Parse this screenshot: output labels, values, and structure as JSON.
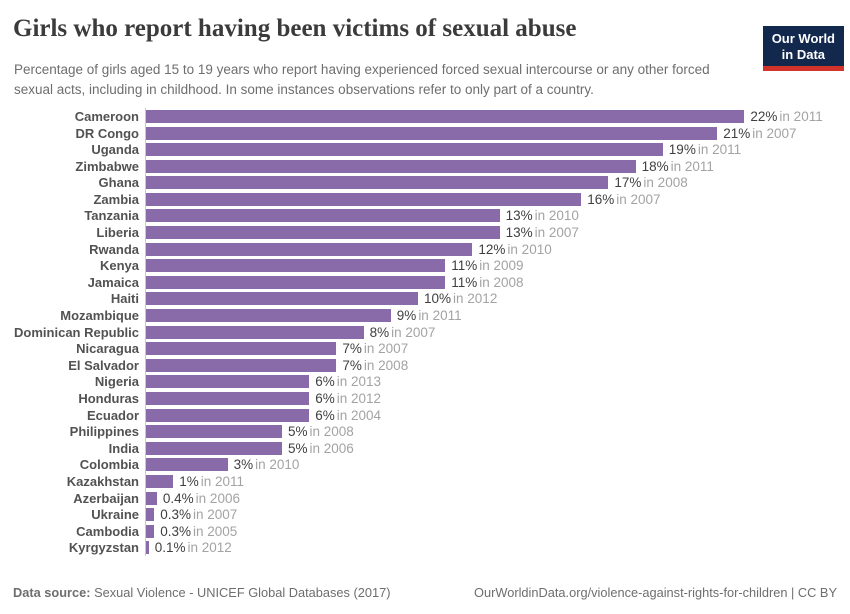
{
  "header": {
    "title": "Girls who report having been victims of sexual abuse",
    "subtitle": "Percentage of girls aged 15 to 19 years who report having experienced forced sexual intercourse or any other forced sexual acts, including in childhood. In some instances observations refer to only part of a country.",
    "logo": {
      "line1": "Our World",
      "line2": "in Data"
    }
  },
  "colors": {
    "bar": "#8a6baa",
    "logo_navy": "#12294d",
    "logo_red": "#d2342b",
    "axis_line": "#c9c9c9"
  },
  "chart_data": {
    "type": "bar",
    "orientation": "horizontal",
    "title": "Girls who report having been victims of sexual abuse",
    "unit": "%",
    "xlim": [
      0,
      22
    ],
    "grid": false,
    "legend": "none",
    "rows": [
      {
        "country": "Cameroon",
        "value": 22,
        "value_label": "22%",
        "year_label": "in 2011"
      },
      {
        "country": "DR Congo",
        "value": 21,
        "value_label": "21%",
        "year_label": "in 2007"
      },
      {
        "country": "Uganda",
        "value": 19,
        "value_label": "19%",
        "year_label": "in 2011"
      },
      {
        "country": "Zimbabwe",
        "value": 18,
        "value_label": "18%",
        "year_label": "in 2011"
      },
      {
        "country": "Ghana",
        "value": 17,
        "value_label": "17%",
        "year_label": "in 2008"
      },
      {
        "country": "Zambia",
        "value": 16,
        "value_label": "16%",
        "year_label": "in 2007"
      },
      {
        "country": "Tanzania",
        "value": 13,
        "value_label": "13%",
        "year_label": "in 2010"
      },
      {
        "country": "Liberia",
        "value": 13,
        "value_label": "13%",
        "year_label": "in 2007"
      },
      {
        "country": "Rwanda",
        "value": 12,
        "value_label": "12%",
        "year_label": "in 2010"
      },
      {
        "country": "Kenya",
        "value": 11,
        "value_label": "11%",
        "year_label": "in 2009"
      },
      {
        "country": "Jamaica",
        "value": 11,
        "value_label": "11%",
        "year_label": "in 2008"
      },
      {
        "country": "Haiti",
        "value": 10,
        "value_label": "10%",
        "year_label": "in 2012"
      },
      {
        "country": "Mozambique",
        "value": 9,
        "value_label": "9%",
        "year_label": "in 2011"
      },
      {
        "country": "Dominican Republic",
        "value": 8,
        "value_label": "8%",
        "year_label": "in 2007"
      },
      {
        "country": "Nicaragua",
        "value": 7,
        "value_label": "7%",
        "year_label": "in 2007"
      },
      {
        "country": "El Salvador",
        "value": 7,
        "value_label": "7%",
        "year_label": "in 2008"
      },
      {
        "country": "Nigeria",
        "value": 6,
        "value_label": "6%",
        "year_label": "in 2013"
      },
      {
        "country": "Honduras",
        "value": 6,
        "value_label": "6%",
        "year_label": "in 2012"
      },
      {
        "country": "Ecuador",
        "value": 6,
        "value_label": "6%",
        "year_label": "in 2004"
      },
      {
        "country": "Philippines",
        "value": 5,
        "value_label": "5%",
        "year_label": "in 2008"
      },
      {
        "country": "India",
        "value": 5,
        "value_label": "5%",
        "year_label": "in 2006"
      },
      {
        "country": "Colombia",
        "value": 3,
        "value_label": "3%",
        "year_label": "in 2010"
      },
      {
        "country": "Kazakhstan",
        "value": 1,
        "value_label": "1%",
        "year_label": "in 2011"
      },
      {
        "country": "Azerbaijan",
        "value": 0.4,
        "value_label": "0.4%",
        "year_label": "in 2006"
      },
      {
        "country": "Ukraine",
        "value": 0.3,
        "value_label": "0.3%",
        "year_label": "in 2007"
      },
      {
        "country": "Cambodia",
        "value": 0.3,
        "value_label": "0.3%",
        "year_label": "in 2005"
      },
      {
        "country": "Kyrgyzstan",
        "value": 0.1,
        "value_label": "0.1%",
        "year_label": "in 2012"
      }
    ]
  },
  "footer": {
    "datasource_label": "Data source:",
    "datasource": "Sexual Violence - UNICEF Global Databases (2017)",
    "credit": "OurWorldinData.org/violence-against-rights-for-children | CC BY"
  }
}
